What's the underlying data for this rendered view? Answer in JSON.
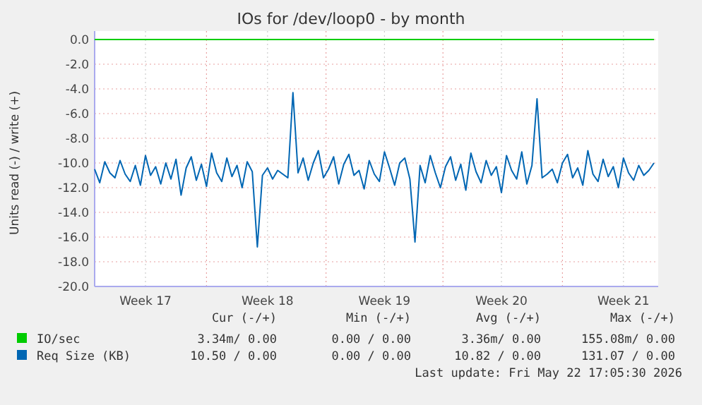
{
  "chart_data": {
    "type": "line",
    "title": "IOs for /dev/loop0 - by month",
    "ylabel": "Units read (-) / write (+)",
    "categories": [
      null,
      null,
      null,
      null,
      null,
      null,
      null,
      null,
      null,
      null,
      "Week 17",
      null,
      null,
      null,
      null,
      null,
      null,
      null,
      null,
      null,
      null,
      null,
      null,
      null,
      null,
      null,
      null,
      null,
      null,
      null,
      null,
      null,
      null,
      null,
      "Week 18",
      null,
      null,
      null,
      null,
      null,
      null,
      null,
      null,
      null,
      null,
      null,
      null,
      null,
      null,
      null,
      null,
      null,
      null,
      null,
      null,
      null,
      null,
      "Week 19",
      null,
      null,
      null,
      null,
      null,
      null,
      null,
      null,
      null,
      null,
      null,
      null,
      null,
      null,
      null,
      null,
      null,
      null,
      null,
      null,
      null,
      null,
      "Week 20",
      null,
      null,
      null,
      null,
      null,
      null,
      null,
      null,
      null,
      null,
      null,
      null,
      null,
      null,
      null,
      null,
      null,
      null,
      null,
      null,
      null,
      null,
      null,
      "Week 21",
      null,
      null,
      null,
      null,
      null,
      null
    ],
    "ylim": [
      -20,
      0
    ],
    "yticks": [
      {
        "value": 0,
        "label": "0.0"
      },
      {
        "value": -2,
        "label": "-2.0"
      },
      {
        "value": -4,
        "label": "-4.0"
      },
      {
        "value": -6,
        "label": "-6.0"
      },
      {
        "value": -8,
        "label": "-8.0"
      },
      {
        "value": -10,
        "label": "-10.0"
      },
      {
        "value": -12,
        "label": "-12.0"
      },
      {
        "value": -14,
        "label": "-14.0"
      },
      {
        "value": -16,
        "label": "-16.0"
      },
      {
        "value": -18,
        "label": "-18.0"
      },
      {
        "value": -20,
        "label": "-20.0"
      }
    ],
    "grid": true,
    "legend": "bottom",
    "series": [
      {
        "name": "IO/sec",
        "color": "#00cc00",
        "values": [
          0,
          0,
          0,
          0,
          0,
          0,
          0,
          0,
          0,
          0,
          0,
          0,
          0,
          0,
          0,
          0,
          0,
          0,
          0,
          0,
          0,
          0,
          0,
          0,
          0,
          0,
          0,
          0,
          0,
          0,
          0,
          0,
          0,
          0,
          0,
          0,
          0,
          0,
          0,
          0,
          0,
          0,
          0,
          0,
          0,
          0,
          0,
          0,
          0,
          0,
          0,
          0,
          0,
          0,
          0,
          0,
          0,
          0,
          0,
          0,
          0,
          0,
          0,
          0,
          0,
          0,
          0,
          0,
          0,
          0,
          0,
          0,
          0,
          0,
          0,
          0,
          0,
          0,
          0,
          0,
          0,
          0,
          0,
          0,
          0,
          0,
          0,
          0,
          0,
          0,
          0,
          0,
          0,
          0,
          0,
          0,
          0,
          0,
          0,
          0,
          0,
          0,
          0,
          0,
          0,
          0,
          0,
          0,
          0,
          0,
          0
        ]
      },
      {
        "name": "Req Size (KB)",
        "color": "#0066b3",
        "values": [
          -10.5,
          -11.6,
          -9.9,
          -10.8,
          -11.2,
          -9.8,
          -10.9,
          -11.5,
          -10.2,
          -11.8,
          -9.4,
          -11.0,
          -10.3,
          -11.7,
          -10.0,
          -11.3,
          -9.7,
          -12.6,
          -10.4,
          -9.5,
          -11.4,
          -10.1,
          -11.9,
          -9.2,
          -10.8,
          -11.5,
          -9.6,
          -11.1,
          -10.2,
          -12.0,
          -9.9,
          -10.7,
          -16.8,
          -11.0,
          -10.4,
          -11.3,
          -10.6,
          -10.9,
          -11.2,
          -4.3,
          -10.8,
          -9.6,
          -11.4,
          -10.0,
          -9.0,
          -11.2,
          -10.5,
          -9.5,
          -11.7,
          -10.1,
          -9.3,
          -11.0,
          -10.6,
          -12.1,
          -9.8,
          -10.9,
          -11.5,
          -9.1,
          -10.4,
          -11.8,
          -10.0,
          -9.6,
          -11.3,
          -16.4,
          -10.2,
          -11.6,
          -9.4,
          -10.8,
          -12.0,
          -10.3,
          -9.5,
          -11.4,
          -10.1,
          -12.2,
          -9.2,
          -10.7,
          -11.6,
          -9.8,
          -11.0,
          -10.3,
          -12.4,
          -9.4,
          -10.6,
          -11.3,
          -9.1,
          -11.7,
          -10.2,
          -4.8,
          -11.2,
          -10.9,
          -10.5,
          -11.6,
          -10.0,
          -9.3,
          -11.2,
          -10.4,
          -11.8,
          -9.0,
          -10.9,
          -11.5,
          -9.7,
          -11.1,
          -10.3,
          -12.0,
          -9.6,
          -10.8,
          -11.4,
          -10.2,
          -11.0,
          -10.6,
          -10.0
        ]
      }
    ],
    "annotations": [
      "Cur (-/+)",
      "Min (-/+)",
      "Avg (-/+)",
      "Max (-/+)",
      "3.34m/ 0.00",
      "0.00 / 0.00",
      "3.36m/ 0.00",
      "155.08m/ 0.00",
      "10.50 / 0.00",
      "0.00 / 0.00",
      "10.82 / 0.00",
      "131.07 / 0.00",
      "Last update: Fri May 22 17:05:30 2026"
    ]
  }
}
